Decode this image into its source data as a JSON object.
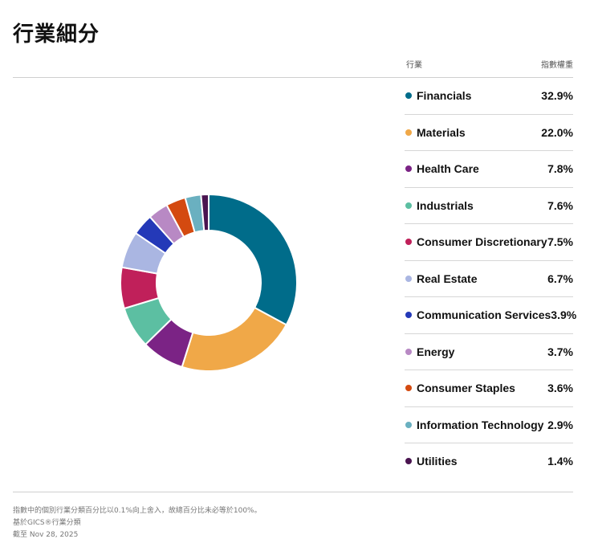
{
  "header": {
    "title": "行業細分",
    "col_sector": "行業",
    "col_weight": "指數權重"
  },
  "colors": {
    "Financials": "#006C8A",
    "Materials": "#F0A848",
    "Health Care": "#7B2385",
    "Industrials": "#5CBFA2",
    "Consumer Discretionary": "#C0205A",
    "Real Estate": "#AAB6E2",
    "Communication Services": "#2439B8",
    "Energy": "#B889C4",
    "Consumer Staples": "#D44A10",
    "Information Technology": "#6AB0C0",
    "Utilities": "#4A1450"
  },
  "chart_data": {
    "type": "pie",
    "donut": true,
    "title": "",
    "legend_position": "right",
    "categories": [
      "Financials",
      "Materials",
      "Health Care",
      "Industrials",
      "Consumer Discretionary",
      "Real Estate",
      "Communication Services",
      "Energy",
      "Consumer Staples",
      "Information Technology",
      "Utilities"
    ],
    "values": [
      32.9,
      22.0,
      7.8,
      7.6,
      7.5,
      6.7,
      3.9,
      3.7,
      3.6,
      2.9,
      1.4
    ],
    "labels": [
      "32.9%",
      "22.0%",
      "7.8%",
      "7.6%",
      "7.5%",
      "6.7%",
      "3.9%",
      "3.7%",
      "3.6%",
      "2.9%",
      "1.4%"
    ]
  },
  "footer": {
    "note1": "指數中的個別行業分類百分比以0.1%向上舍入，故總百分比未必等於100%。",
    "note2": "基於GICS®行業分類",
    "note3": "截至 Nov 28, 2025"
  }
}
